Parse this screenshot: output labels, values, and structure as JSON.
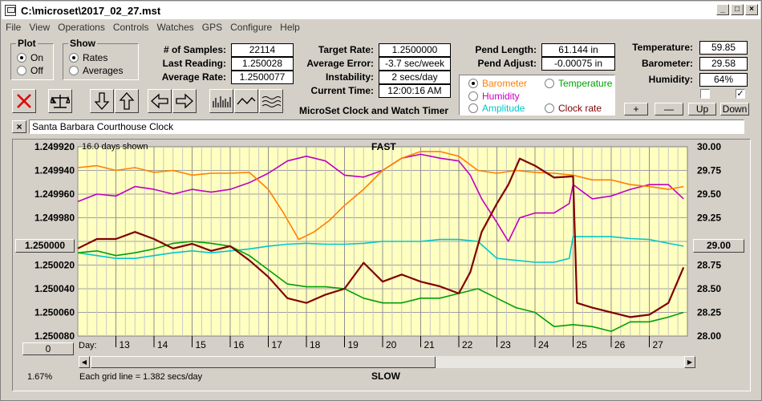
{
  "window": {
    "title": "C:\\microset\\2017_02_27.mst",
    "controls": [
      "_",
      "□",
      "×"
    ]
  },
  "menu": [
    "File",
    "View",
    "Operations",
    "Controls",
    "Watches",
    "GPS",
    "Configure",
    "Help"
  ],
  "plot_group": {
    "label": "Plot",
    "options": [
      "On",
      "Off"
    ],
    "selected": "On"
  },
  "show_group": {
    "label": "Show",
    "options": [
      "Rates",
      "Averages"
    ],
    "selected": "Rates"
  },
  "stats": {
    "samples_label": "# of Samples:",
    "samples": "22114",
    "last_label": "Last Reading:",
    "last": "1.250028",
    "avg_label": "Average Rate:",
    "avg": "1.2500077",
    "target_label": "Target Rate:",
    "target": "1.2500000",
    "avg_err_label": "Average Error:",
    "avg_err": "-3.7 sec/week",
    "instab_label": "Instability:",
    "instab": "2 secs/day",
    "time_label": "Current Time:",
    "time": "12:00:16 AM",
    "pend_len_label": "Pend Length:",
    "pend_len": "61.144 in",
    "pend_adj_label": "Pend Adjust:",
    "pend_adj": "-0.00075 in",
    "temp_label": "Temperature:",
    "temp": "59.85",
    "baro_label": "Barometer:",
    "baro": "29.58",
    "hum_label": "Humidity:",
    "hum": "64%"
  },
  "app_caption": "MicroSet Clock and Watch Timer",
  "aux_options": [
    {
      "label": "Barometer",
      "color": "#ff8000",
      "selected": true
    },
    {
      "label": "Temperature",
      "color": "#00a000",
      "selected": false
    },
    {
      "label": "Humidity",
      "color": "#c000c0",
      "selected": false
    },
    {
      "label": "Amplitude",
      "color": "#00c8c8",
      "selected": false
    },
    {
      "label": "Clock rate",
      "color": "#800000",
      "selected": false
    }
  ],
  "aux_buttons": {
    "plus": "+",
    "minus": "—",
    "up": "Up",
    "down": "Down"
  },
  "checks": [
    false,
    true
  ],
  "clock_name": "Santa Barbara Courthouse Clock",
  "close_x": "×",
  "chart": {
    "days_shown": "16.0 days shown",
    "top_label": "FAST",
    "bottom_label": "SLOW",
    "grid_note": "Each grid line = 1.382 secs/day",
    "left_ticks": [
      "1.249920",
      "1.249940",
      "1.249960",
      "1.249980",
      "1.250000",
      "1.250020",
      "1.250040",
      "1.250060",
      "1.250080"
    ],
    "center_value": "1.250000",
    "right_ticks": [
      "30.00",
      "29.75",
      "29.50",
      "29.25",
      "29.00",
      "28.75",
      "28.50",
      "28.25",
      "28.00"
    ],
    "right_center": "29.00",
    "day_prefix": "Day:",
    "days": [
      "13",
      "14",
      "15",
      "16",
      "17",
      "18",
      "19",
      "20",
      "21",
      "22",
      "23",
      "24",
      "25",
      "26",
      "27"
    ],
    "zero_button": "0",
    "percent": "1.67%"
  },
  "chart_data": {
    "type": "line",
    "x_unit": "day",
    "xlim": [
      12.0,
      28.0
    ],
    "left_axis_range": [
      1.24992,
      1.25008
    ],
    "right_axis_range": [
      28.0,
      30.0
    ],
    "series": [
      {
        "name": "Clock rate",
        "color": "#800000",
        "axis": "left",
        "x": [
          12.0,
          12.5,
          13.0,
          13.5,
          14.0,
          14.5,
          15.0,
          15.5,
          16.0,
          16.5,
          17.0,
          17.5,
          18.0,
          18.5,
          19.0,
          19.5,
          20.0,
          20.5,
          21.0,
          21.5,
          22.0,
          22.3,
          22.6,
          23.0,
          23.3,
          23.6,
          24.0,
          24.5,
          25.0,
          25.1,
          25.5,
          26.0,
          26.5,
          27.0,
          27.5,
          27.9
        ],
        "y": [
          1.250006,
          1.249998,
          1.249998,
          1.249992,
          1.249998,
          1.250006,
          1.250002,
          1.250008,
          1.250004,
          1.250016,
          1.25003,
          1.250048,
          1.250052,
          1.250045,
          1.25004,
          1.250018,
          1.250034,
          1.250028,
          1.250034,
          1.250038,
          1.250044,
          1.250026,
          1.249992,
          1.249968,
          1.249952,
          1.24993,
          1.249936,
          1.249946,
          1.249945,
          1.250052,
          1.250056,
          1.25006,
          1.250064,
          1.250062,
          1.250052,
          1.250022
        ]
      },
      {
        "name": "Barometer",
        "color": "#ff8000",
        "axis": "right",
        "x": [
          12.0,
          12.5,
          13.0,
          13.5,
          14.0,
          14.5,
          15.0,
          15.5,
          16.0,
          16.5,
          17.0,
          17.4,
          17.8,
          18.2,
          18.6,
          19.0,
          19.5,
          20.0,
          20.5,
          21.0,
          21.5,
          22.0,
          22.5,
          23.0,
          23.5,
          24.0,
          24.5,
          25.0,
          25.5,
          26.0,
          26.5,
          27.0,
          27.5,
          27.9
        ],
        "y": [
          29.78,
          29.8,
          29.75,
          29.78,
          29.73,
          29.75,
          29.7,
          29.72,
          29.72,
          29.73,
          29.55,
          29.3,
          29.02,
          29.1,
          29.22,
          29.38,
          29.55,
          29.75,
          29.88,
          29.95,
          29.95,
          29.9,
          29.75,
          29.72,
          29.75,
          29.73,
          29.72,
          29.7,
          29.65,
          29.65,
          29.6,
          29.58,
          29.55,
          29.58
        ]
      },
      {
        "name": "Humidity",
        "color": "#c000c0",
        "axis": "right",
        "x": [
          12.0,
          12.5,
          13.0,
          13.5,
          14.0,
          14.5,
          15.0,
          15.5,
          16.0,
          16.5,
          17.0,
          17.5,
          18.0,
          18.5,
          19.0,
          19.5,
          20.0,
          20.5,
          21.0,
          21.5,
          22.0,
          22.3,
          22.6,
          23.0,
          23.3,
          23.6,
          24.0,
          24.5,
          24.9,
          25.0,
          25.5,
          26.0,
          26.5,
          27.0,
          27.5,
          27.9
        ],
        "y": [
          29.42,
          29.5,
          29.48,
          29.58,
          29.55,
          29.5,
          29.55,
          29.52,
          29.55,
          29.62,
          29.72,
          29.85,
          29.9,
          29.85,
          29.7,
          29.68,
          29.75,
          29.88,
          29.92,
          29.88,
          29.85,
          29.7,
          29.45,
          29.2,
          29.0,
          29.25,
          29.3,
          29.3,
          29.4,
          29.6,
          29.45,
          29.48,
          29.55,
          29.6,
          29.6,
          29.45
        ]
      },
      {
        "name": "Temperature",
        "color": "#00a000",
        "axis": "right",
        "x": [
          12.0,
          12.5,
          13.0,
          13.5,
          14.0,
          14.5,
          15.0,
          15.5,
          16.0,
          16.5,
          17.0,
          17.5,
          18.0,
          18.5,
          19.0,
          19.5,
          20.0,
          20.5,
          21.0,
          21.5,
          22.0,
          22.5,
          23.0,
          23.5,
          24.0,
          24.5,
          25.0,
          25.5,
          26.0,
          26.5,
          27.0,
          27.5,
          27.9
        ],
        "y": [
          28.88,
          28.9,
          28.85,
          28.88,
          28.92,
          28.98,
          29.0,
          28.98,
          28.95,
          28.85,
          28.7,
          28.55,
          28.52,
          28.52,
          28.5,
          28.4,
          28.35,
          28.35,
          28.4,
          28.4,
          28.45,
          28.5,
          28.4,
          28.3,
          28.25,
          28.1,
          28.12,
          28.1,
          28.05,
          28.15,
          28.15,
          28.2,
          28.25
        ]
      },
      {
        "name": "Amplitude",
        "color": "#00c8c8",
        "axis": "right",
        "x": [
          12.0,
          12.5,
          13.0,
          13.5,
          14.0,
          14.5,
          15.0,
          15.5,
          16.0,
          16.5,
          17.0,
          17.5,
          18.0,
          18.5,
          19.0,
          19.5,
          20.0,
          20.5,
          21.0,
          21.5,
          22.0,
          22.5,
          23.0,
          23.5,
          24.0,
          24.5,
          24.9,
          25.0,
          25.5,
          26.0,
          26.5,
          27.0,
          27.5,
          27.9
        ],
        "y": [
          28.88,
          28.85,
          28.82,
          28.82,
          28.85,
          28.88,
          28.9,
          28.88,
          28.9,
          28.92,
          28.95,
          28.97,
          28.98,
          28.97,
          28.97,
          28.98,
          29.0,
          29.0,
          29.0,
          29.02,
          29.02,
          29.0,
          28.82,
          28.8,
          28.78,
          28.78,
          28.82,
          29.05,
          29.05,
          29.05,
          29.03,
          29.02,
          28.98,
          28.95
        ]
      }
    ]
  }
}
